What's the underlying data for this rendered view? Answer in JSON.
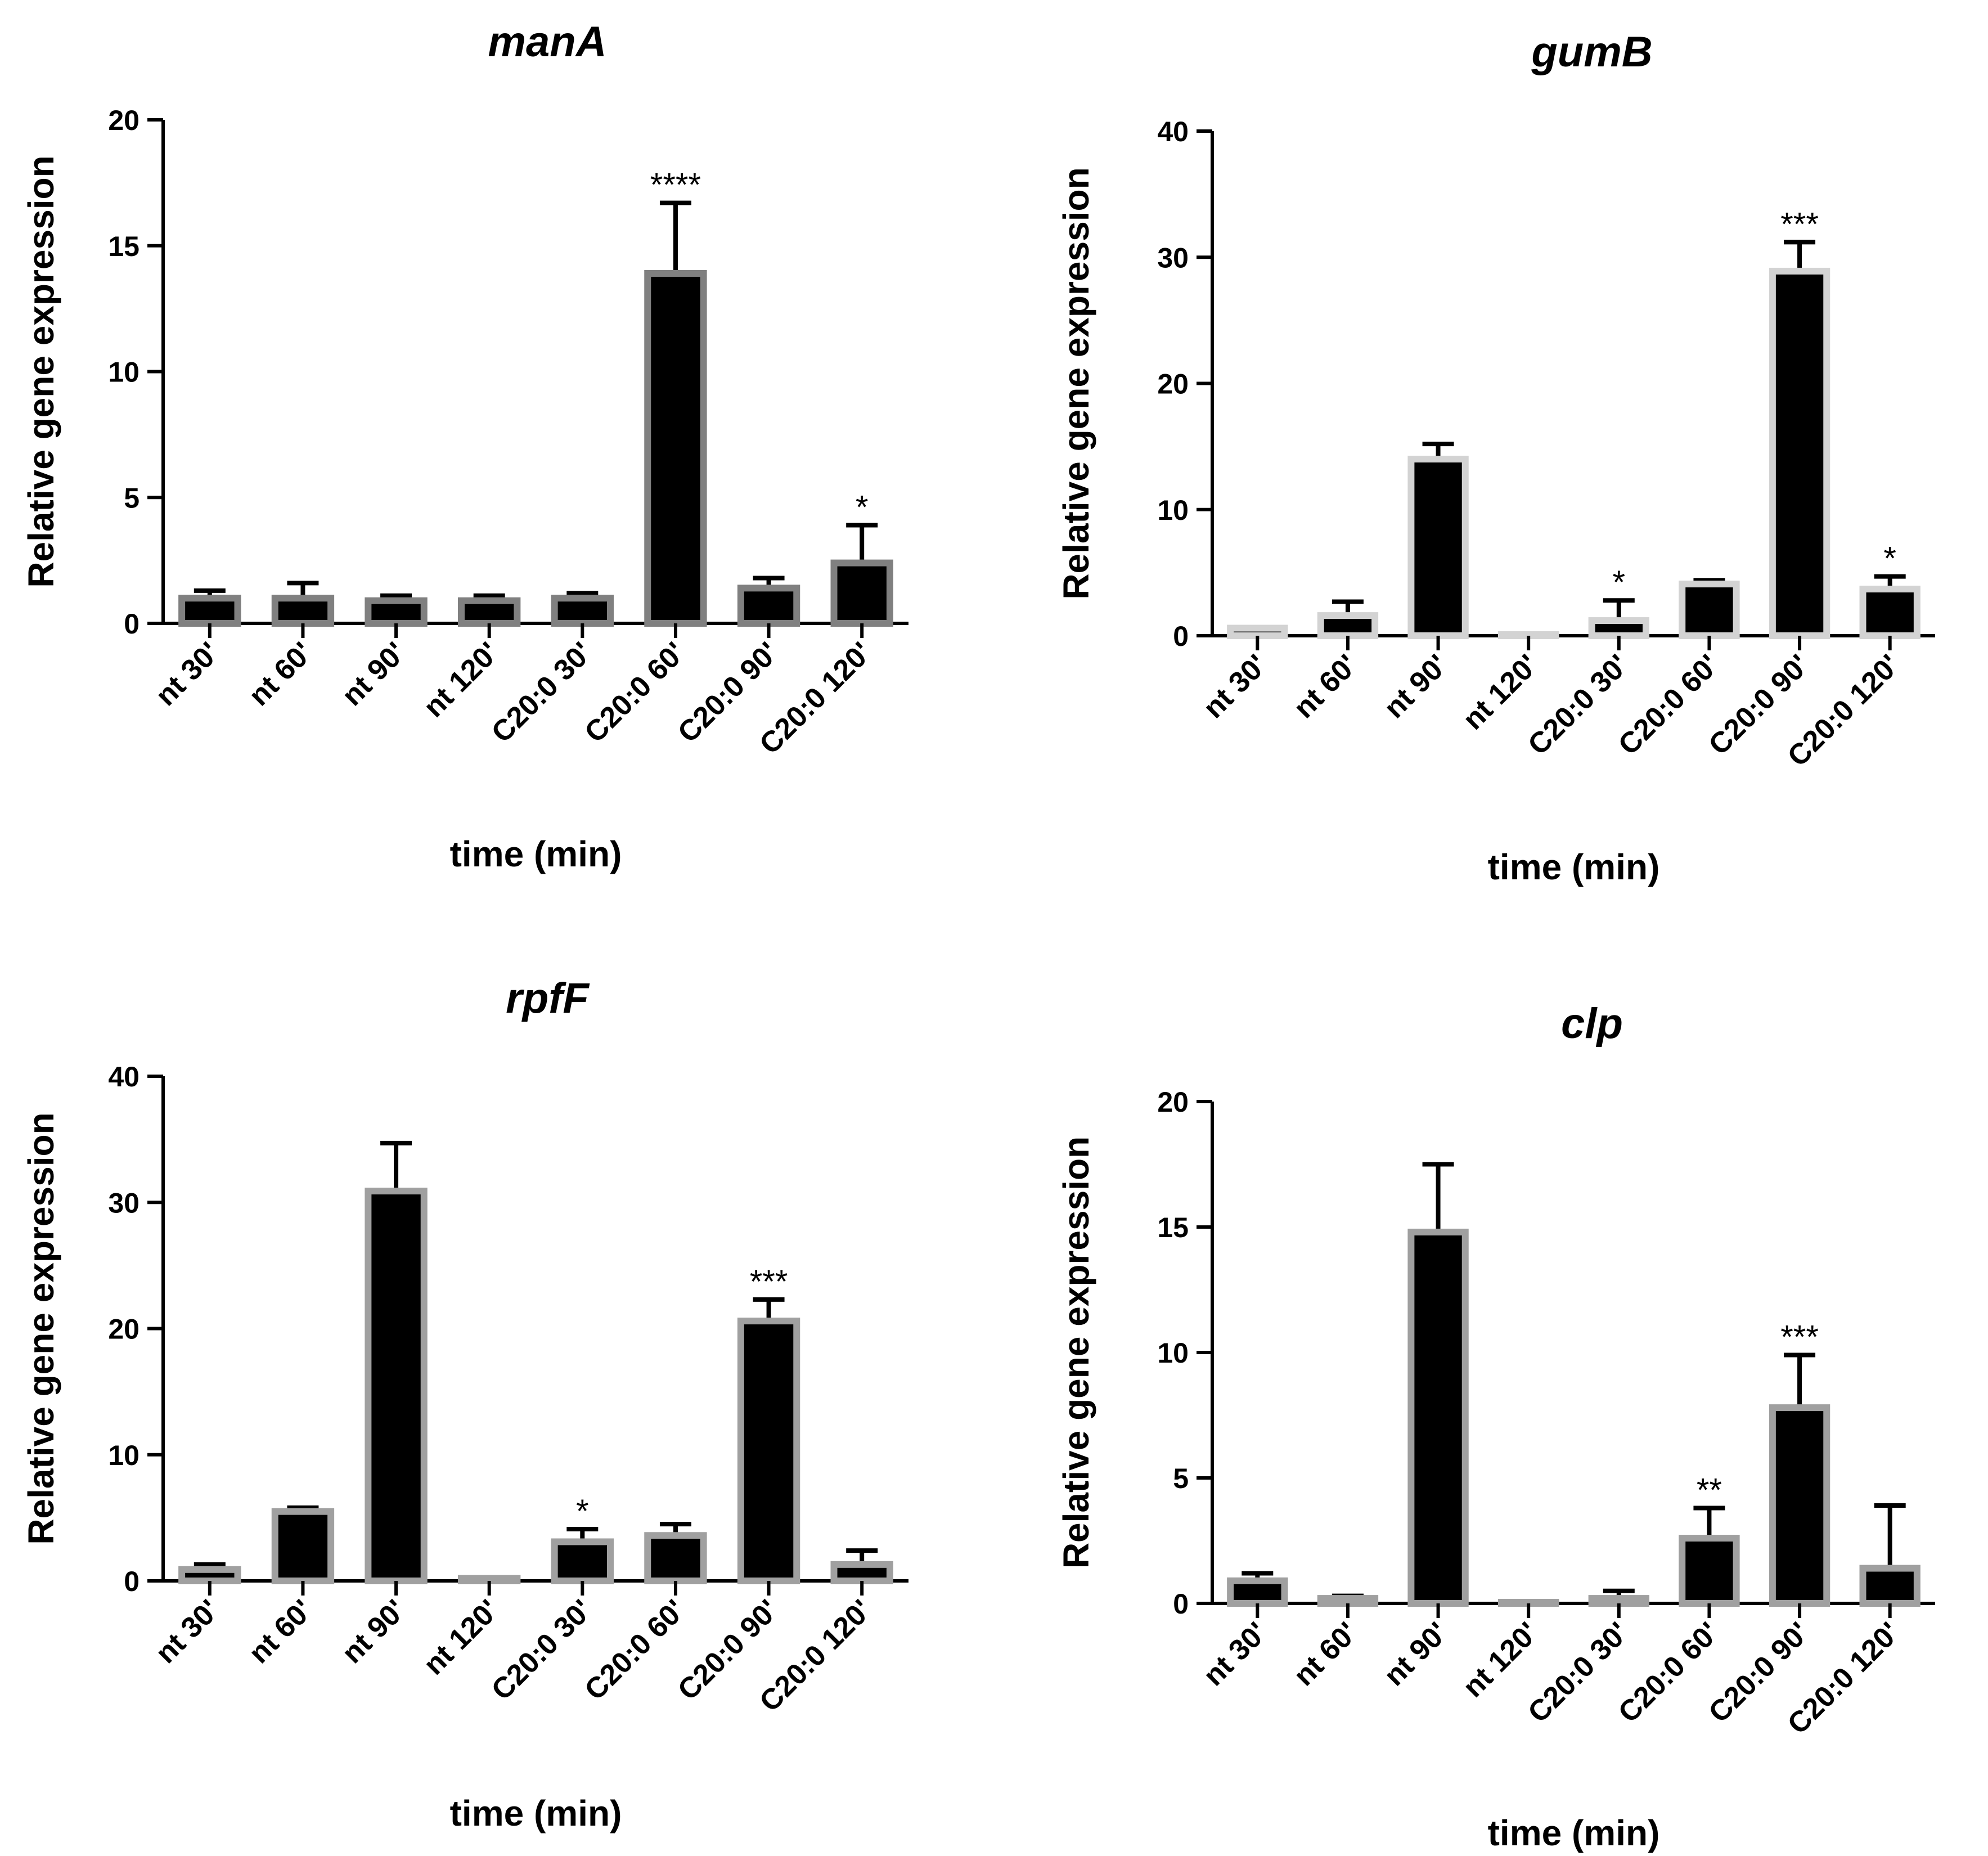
{
  "chart_data": [
    {
      "type": "bar",
      "title": "manA",
      "xlabel": "time (min)",
      "ylabel": "Relative gene expression",
      "ylim": [
        0,
        20
      ],
      "yticks": [
        0,
        5,
        10,
        15,
        20
      ],
      "categories": [
        "nt 30'",
        "nt 60'",
        "nt 90'",
        "nt 120'",
        "C20:0 30'",
        "C20:0 60'",
        "C20:0 90'",
        "C20:0 120'"
      ],
      "values": [
        1.0,
        1.0,
        0.9,
        0.9,
        1.0,
        13.9,
        1.4,
        2.4
      ],
      "errors": [
        0.3,
        0.6,
        0.2,
        0.2,
        0.2,
        2.8,
        0.4,
        1.5
      ],
      "significance": [
        "",
        "",
        "",
        "",
        "",
        "****",
        "",
        "*"
      ],
      "bar_fill": "#000000",
      "bar_outline": "#808080"
    },
    {
      "type": "bar",
      "title": "gumB",
      "xlabel": "time (min)",
      "ylabel": "Relative gene expression",
      "ylim": [
        0,
        40
      ],
      "yticks": [
        0,
        10,
        20,
        30,
        40
      ],
      "categories": [
        "nt 30'",
        "nt 60'",
        "nt 90'",
        "nt 120'",
        "C20:0 30'",
        "C20:0 60'",
        "C20:0 90'",
        "C20:0 120'"
      ],
      "values": [
        0.6,
        1.6,
        14.0,
        0.0,
        1.2,
        4.1,
        28.9,
        3.7
      ],
      "errors": [
        0.0,
        1.1,
        1.2,
        0.0,
        1.6,
        0.3,
        2.3,
        1.0
      ],
      "significance": [
        "",
        "",
        "",
        "",
        "*",
        "",
        "***",
        "*"
      ],
      "bar_fill": "#000000",
      "bar_outline": "#d3d3d3"
    },
    {
      "type": "bar",
      "title": "rpfF",
      "xlabel": "time (min)",
      "ylabel": "Relative gene expression",
      "ylim": [
        0,
        40
      ],
      "yticks": [
        0,
        10,
        20,
        30,
        40
      ],
      "categories": [
        "nt 30'",
        "nt 60'",
        "nt 90'",
        "nt 120'",
        "C20:0 30'",
        "C20:0 60'",
        "C20:0 90'",
        "C20:0 120'"
      ],
      "values": [
        0.9,
        5.5,
        30.9,
        0.2,
        3.1,
        3.6,
        20.6,
        1.3
      ],
      "errors": [
        0.4,
        0.3,
        3.8,
        0.0,
        1.0,
        0.9,
        1.7,
        1.1
      ],
      "significance": [
        "",
        "",
        "",
        "",
        "*",
        "",
        "***",
        ""
      ],
      "bar_fill": "#000000",
      "bar_outline": "#a0a0a0"
    },
    {
      "type": "bar",
      "title": "clp",
      "xlabel": "time (min)",
      "ylabel": "Relative gene expression",
      "ylim": [
        0,
        20
      ],
      "yticks": [
        0,
        5,
        10,
        15,
        20
      ],
      "categories": [
        "nt 30'",
        "nt 60'",
        "nt 90'",
        "nt 120'",
        "C20:0 30'",
        "C20:0 60'",
        "C20:0 90'",
        "C20:0 120'"
      ],
      "values": [
        0.9,
        0.2,
        14.8,
        0.0,
        0.2,
        2.6,
        7.8,
        1.4
      ],
      "errors": [
        0.3,
        0.1,
        2.7,
        0.0,
        0.3,
        1.2,
        2.1,
        2.5
      ],
      "significance": [
        "",
        "",
        "",
        "",
        "",
        "**",
        "***",
        ""
      ],
      "bar_fill": "#000000",
      "bar_outline": "#a0a0a0"
    }
  ]
}
